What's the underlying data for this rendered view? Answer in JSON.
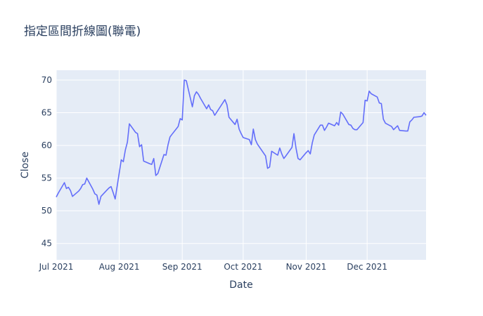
{
  "chart_data": {
    "type": "line",
    "title": "指定區間折線圖(聯電)",
    "xlabel": "Date",
    "ylabel": "Close",
    "x_tick_labels": [
      "Jul 2021",
      "Aug 2021",
      "Sep 2021",
      "Oct 2021",
      "Nov 2021",
      "Dec 2021"
    ],
    "x_tick_dates": [
      "2021-07-01",
      "2021-08-01",
      "2021-09-01",
      "2021-10-01",
      "2021-11-01",
      "2021-12-01"
    ],
    "xlim": [
      "2021-07-01",
      "2021-12-30"
    ],
    "y_tick_labels": [
      "45",
      "50",
      "55",
      "60",
      "65",
      "70"
    ],
    "y_tick_values": [
      45,
      50,
      55,
      60,
      65,
      70
    ],
    "ylim": [
      42.5,
      71.5
    ],
    "grid": true,
    "line_color": "#636efa",
    "plot_background": "#e5ecf6",
    "series": [
      {
        "x": [
          "2021-07-01",
          "2021-07-02",
          "2021-07-05",
          "2021-07-06",
          "2021-07-07",
          "2021-07-08",
          "2021-07-09",
          "2021-07-12",
          "2021-07-13",
          "2021-07-14",
          "2021-07-15",
          "2021-07-16",
          "2021-07-19",
          "2021-07-20",
          "2021-07-21",
          "2021-07-22",
          "2021-07-23",
          "2021-07-26",
          "2021-07-27",
          "2021-07-28",
          "2021-07-29",
          "2021-07-30",
          "2021-08-02",
          "2021-08-03",
          "2021-08-04",
          "2021-08-05",
          "2021-08-06",
          "2021-08-09",
          "2021-08-10",
          "2021-08-11",
          "2021-08-12",
          "2021-08-13",
          "2021-08-16",
          "2021-08-17",
          "2021-08-18",
          "2021-08-19",
          "2021-08-20",
          "2021-08-23",
          "2021-08-24",
          "2021-08-25",
          "2021-08-26",
          "2021-08-27",
          "2021-08-30",
          "2021-08-31",
          "2021-09-01",
          "2021-09-02",
          "2021-09-03",
          "2021-09-06",
          "2021-09-07",
          "2021-09-08",
          "2021-09-09",
          "2021-09-10",
          "2021-09-13",
          "2021-09-14",
          "2021-09-15",
          "2021-09-16",
          "2021-09-17",
          "2021-09-22",
          "2021-09-23",
          "2021-09-24",
          "2021-09-27",
          "2021-09-28",
          "2021-09-29",
          "2021-09-30",
          "2021-10-01",
          "2021-10-04",
          "2021-10-05",
          "2021-10-06",
          "2021-10-07",
          "2021-10-08",
          "2021-10-12",
          "2021-10-13",
          "2021-10-14",
          "2021-10-15",
          "2021-10-18",
          "2021-10-19",
          "2021-10-20",
          "2021-10-21",
          "2021-10-22",
          "2021-10-25",
          "2021-10-26",
          "2021-10-27",
          "2021-10-28",
          "2021-10-29",
          "2021-11-01",
          "2021-11-02",
          "2021-11-03",
          "2021-11-04",
          "2021-11-05",
          "2021-11-08",
          "2021-11-09",
          "2021-11-10",
          "2021-11-11",
          "2021-11-12",
          "2021-11-15",
          "2021-11-16",
          "2021-11-17",
          "2021-11-18",
          "2021-11-19",
          "2021-11-22",
          "2021-11-23",
          "2021-11-24",
          "2021-11-25",
          "2021-11-26",
          "2021-11-29",
          "2021-11-30",
          "2021-12-01",
          "2021-12-02",
          "2021-12-03",
          "2021-12-06",
          "2021-12-07",
          "2021-12-08",
          "2021-12-09",
          "2021-12-10",
          "2021-12-13",
          "2021-12-14",
          "2021-12-15",
          "2021-12-16",
          "2021-12-17",
          "2021-12-20",
          "2021-12-21",
          "2021-12-22",
          "2021-12-23",
          "2021-12-24",
          "2021-12-27",
          "2021-12-28",
          "2021-12-29",
          "2021-12-30"
        ],
        "y": [
          52.1,
          52.7,
          54.3,
          53.4,
          53.6,
          53.1,
          52.2,
          53.0,
          53.4,
          54.0,
          54.1,
          55.0,
          53.3,
          52.6,
          52.4,
          51.0,
          52.2,
          53.2,
          53.5,
          53.7,
          52.8,
          51.8,
          57.8,
          57.5,
          59.3,
          60.5,
          63.3,
          62.0,
          61.8,
          59.8,
          60.1,
          57.6,
          57.2,
          57.1,
          58.0,
          55.4,
          55.7,
          58.6,
          58.5,
          60.1,
          61.3,
          61.7,
          62.9,
          64.1,
          63.9,
          70.0,
          69.9,
          65.9,
          67.6,
          68.2,
          67.8,
          67.2,
          65.6,
          66.2,
          65.5,
          65.3,
          64.6,
          67.0,
          66.2,
          64.3,
          63.2,
          64.0,
          62.5,
          61.8,
          61.2,
          60.9,
          60.1,
          62.5,
          60.9,
          60.2,
          58.4,
          56.5,
          56.7,
          59.1,
          58.5,
          59.6,
          58.7,
          58.0,
          58.4,
          59.7,
          61.8,
          59.6,
          58.0,
          57.8,
          58.9,
          59.2,
          58.7,
          60.4,
          61.6,
          63.1,
          63.1,
          62.3,
          62.8,
          63.4,
          63.0,
          63.5,
          63.1,
          65.1,
          64.8,
          63.2,
          63.1,
          62.6,
          62.4,
          62.4,
          63.5,
          66.9,
          66.8,
          68.3,
          67.9,
          67.4,
          66.5,
          66.4,
          64.0,
          63.4,
          62.9,
          62.4,
          62.7,
          63.0,
          62.3,
          62.2,
          62.2,
          63.6,
          63.9,
          64.3,
          64.4,
          64.5,
          65.0,
          64.6
        ]
      }
    ]
  }
}
